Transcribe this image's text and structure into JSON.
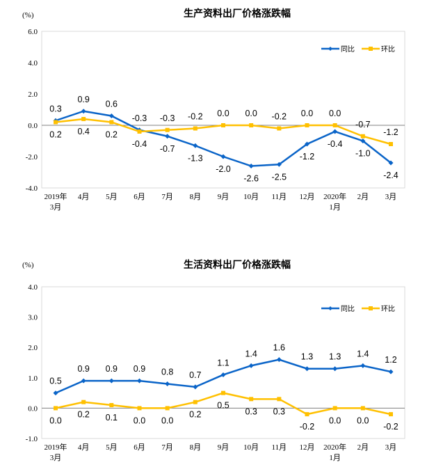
{
  "colors": {
    "yoy": "#0a64c8",
    "mom": "#ffc000"
  },
  "chart_data": [
    {
      "type": "line",
      "title": "生产资料出厂价格涨跌幅",
      "ylabel": "(%)",
      "ylim": [
        -4,
        6
      ],
      "yticks": [
        "6.0",
        "4.0",
        "2.0",
        "0.0",
        "-2.0",
        "-4.0"
      ],
      "ytick_values": [
        6,
        4,
        2,
        0,
        -2,
        -4
      ],
      "categories": [
        [
          "2019年",
          "3月"
        ],
        [
          "4月"
        ],
        [
          "5月"
        ],
        [
          "6月"
        ],
        [
          "7月"
        ],
        [
          "8月"
        ],
        [
          "9月"
        ],
        [
          "10月"
        ],
        [
          "11月"
        ],
        [
          "12月"
        ],
        [
          "2020年",
          "1月"
        ],
        [
          "2月"
        ],
        [
          "3月"
        ]
      ],
      "legend_position": "top-right",
      "series": [
        {
          "name": "同比",
          "values": [
            0.3,
            0.9,
            0.6,
            -0.3,
            -0.7,
            -1.3,
            -2.0,
            -2.6,
            -2.5,
            -1.2,
            -0.4,
            -1.0,
            -2.4
          ]
        },
        {
          "name": "环比",
          "values": [
            0.2,
            0.4,
            0.2,
            -0.4,
            -0.3,
            -0.2,
            0.0,
            0.0,
            -0.2,
            0.0,
            0.0,
            -0.7,
            -1.2
          ]
        }
      ]
    },
    {
      "type": "line",
      "title": "生活资料出厂价格涨跌幅",
      "ylabel": "(%)",
      "ylim": [
        -1,
        4
      ],
      "yticks": [
        "4.0",
        "3.0",
        "2.0",
        "1.0",
        "0.0",
        "-1.0"
      ],
      "ytick_values": [
        4,
        3,
        2,
        1,
        0,
        -1
      ],
      "categories": [
        [
          "2019年",
          "3月"
        ],
        [
          "4月"
        ],
        [
          "5月"
        ],
        [
          "6月"
        ],
        [
          "7月"
        ],
        [
          "8月"
        ],
        [
          "9月"
        ],
        [
          "10月"
        ],
        [
          "11月"
        ],
        [
          "12月"
        ],
        [
          "2020年",
          "1月"
        ],
        [
          "2月"
        ],
        [
          "3月"
        ]
      ],
      "legend_position": "top-right",
      "series": [
        {
          "name": "同比",
          "values": [
            0.5,
            0.9,
            0.9,
            0.9,
            0.8,
            0.7,
            1.1,
            1.4,
            1.6,
            1.3,
            1.3,
            1.4,
            1.2
          ]
        },
        {
          "name": "环比",
          "values": [
            0.0,
            0.2,
            0.1,
            0.0,
            0.0,
            0.2,
            0.5,
            0.3,
            0.3,
            -0.2,
            0.0,
            0.0,
            -0.2
          ]
        }
      ]
    }
  ]
}
